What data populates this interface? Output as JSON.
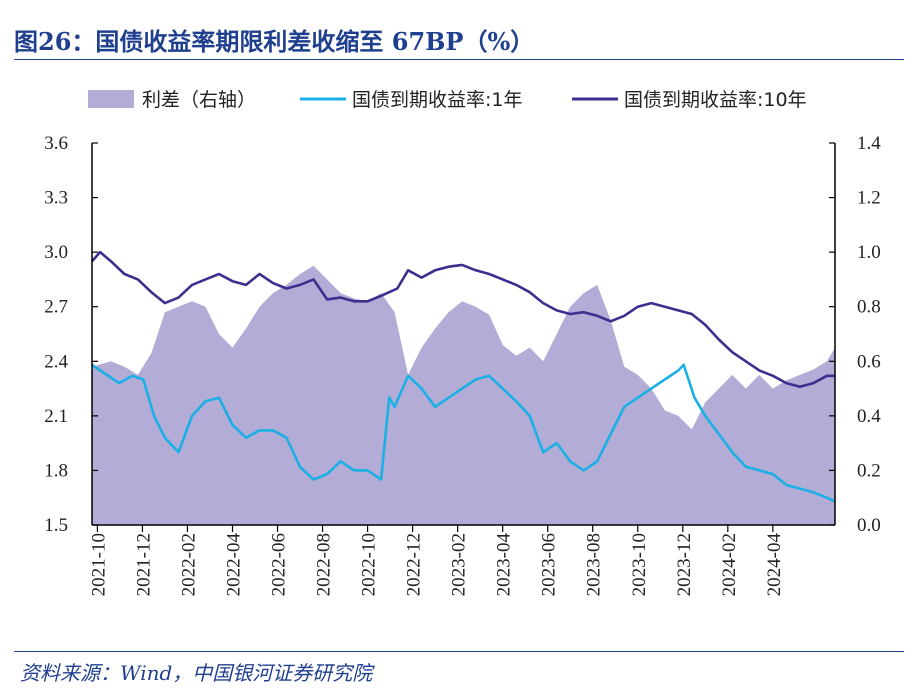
{
  "figure": {
    "title": "图26：国债收益率期限利差收缩至 67BP（%）",
    "source": "资料来源：Wind，中国银河证券研究院"
  },
  "chart_data": {
    "type": "area+line",
    "title": "图26：国债收益率期限利差收缩至 67BP（%）",
    "legend_position": "top",
    "colors": {
      "spread": "#b2acd6",
      "y1": "#1ab0e6",
      "y10": "#3b2f8f",
      "axis": "#000000"
    },
    "y_left": {
      "range": [
        1.5,
        3.6
      ],
      "ticks": [
        "3.6",
        "3.3",
        "3.0",
        "2.7",
        "2.4",
        "2.1",
        "1.8",
        "1.5"
      ]
    },
    "y_right": {
      "range": [
        0.0,
        1.4
      ],
      "ticks": [
        "1.4",
        "1.2",
        "1.0",
        "0.8",
        "0.6",
        "0.4",
        "0.2",
        "0.0"
      ]
    },
    "x_range": [
      2021.73,
      2024.48
    ],
    "x_ticks": [
      {
        "label": "2021-10",
        "t": 2021.75
      },
      {
        "label": "2021-12",
        "t": 2021.9167
      },
      {
        "label": "2022-02",
        "t": 2022.0833
      },
      {
        "label": "2022-04",
        "t": 2022.25
      },
      {
        "label": "2022-06",
        "t": 2022.4167
      },
      {
        "label": "2022-08",
        "t": 2022.5833
      },
      {
        "label": "2022-10",
        "t": 2022.75
      },
      {
        "label": "2022-12",
        "t": 2022.9167
      },
      {
        "label": "2023-02",
        "t": 2023.0833
      },
      {
        "label": "2023-04",
        "t": 2023.25
      },
      {
        "label": "2023-06",
        "t": 2023.4167
      },
      {
        "label": "2023-08",
        "t": 2023.5833
      },
      {
        "label": "2023-10",
        "t": 2023.75
      },
      {
        "label": "2023-12",
        "t": 2023.9167
      },
      {
        "label": "2024-02",
        "t": 2024.0833
      },
      {
        "label": "2024-04",
        "t": 2024.25
      }
    ],
    "series": [
      {
        "name": "利差（右轴）",
        "axis": "right",
        "kind": "area",
        "x": [
          2021.73,
          2021.8,
          2021.85,
          2021.9,
          2021.95,
          2022.0,
          2022.05,
          2022.1,
          2022.15,
          2022.2,
          2022.25,
          2022.3,
          2022.35,
          2022.4,
          2022.45,
          2022.5,
          2022.55,
          2022.6,
          2022.65,
          2022.7,
          2022.75,
          2022.8,
          2022.85,
          2022.9,
          2022.95,
          2023.0,
          2023.05,
          2023.1,
          2023.15,
          2023.2,
          2023.25,
          2023.3,
          2023.35,
          2023.4,
          2023.45,
          2023.5,
          2023.55,
          2023.6,
          2023.65,
          2023.7,
          2023.75,
          2023.8,
          2023.85,
          2023.9,
          2023.95,
          2024.0,
          2024.05,
          2024.1,
          2024.15,
          2024.2,
          2024.25,
          2024.3,
          2024.35,
          2024.4,
          2024.45,
          2024.48
        ],
        "values": [
          0.58,
          0.6,
          0.58,
          0.55,
          0.63,
          0.78,
          0.8,
          0.82,
          0.8,
          0.7,
          0.65,
          0.72,
          0.8,
          0.85,
          0.88,
          0.92,
          0.95,
          0.9,
          0.85,
          0.83,
          0.82,
          0.85,
          0.78,
          0.55,
          0.65,
          0.72,
          0.78,
          0.82,
          0.8,
          0.77,
          0.66,
          0.62,
          0.65,
          0.6,
          0.7,
          0.8,
          0.85,
          0.88,
          0.75,
          0.58,
          0.55,
          0.5,
          0.42,
          0.4,
          0.35,
          0.45,
          0.5,
          0.55,
          0.5,
          0.55,
          0.5,
          0.53,
          0.55,
          0.57,
          0.6,
          0.65
        ]
      },
      {
        "name": "国债到期收益率:1年",
        "axis": "left",
        "kind": "line",
        "x": [
          2021.73,
          2021.78,
          2021.83,
          2021.88,
          2021.92,
          2021.96,
          2022.0,
          2022.05,
          2022.1,
          2022.15,
          2022.2,
          2022.25,
          2022.3,
          2022.35,
          2022.4,
          2022.45,
          2022.5,
          2022.55,
          2022.6,
          2022.65,
          2022.7,
          2022.75,
          2022.8,
          2022.83,
          2022.85,
          2022.9,
          2022.95,
          2023.0,
          2023.05,
          2023.1,
          2023.15,
          2023.2,
          2023.25,
          2023.3,
          2023.35,
          2023.4,
          2023.45,
          2023.5,
          2023.55,
          2023.6,
          2023.65,
          2023.7,
          2023.75,
          2023.8,
          2023.85,
          2023.9,
          2023.92,
          2023.96,
          2024.0,
          2024.05,
          2024.1,
          2024.15,
          2024.2,
          2024.25,
          2024.3,
          2024.35,
          2024.4,
          2024.45,
          2024.48
        ],
        "values": [
          2.38,
          2.33,
          2.28,
          2.32,
          2.3,
          2.1,
          1.98,
          1.9,
          2.1,
          2.18,
          2.2,
          2.05,
          1.98,
          2.02,
          2.02,
          1.98,
          1.82,
          1.75,
          1.78,
          1.85,
          1.8,
          1.8,
          1.75,
          2.2,
          2.15,
          2.32,
          2.25,
          2.15,
          2.2,
          2.25,
          2.3,
          2.32,
          2.25,
          2.18,
          2.1,
          1.9,
          1.95,
          1.85,
          1.8,
          1.85,
          2.0,
          2.15,
          2.2,
          2.25,
          2.3,
          2.35,
          2.38,
          2.2,
          2.1,
          2.0,
          1.9,
          1.82,
          1.8,
          1.78,
          1.72,
          1.7,
          1.68,
          1.65,
          1.63
        ]
      },
      {
        "name": "国债到期收益率:10年",
        "axis": "left",
        "kind": "line",
        "x": [
          2021.73,
          2021.76,
          2021.8,
          2021.85,
          2021.9,
          2021.95,
          2022.0,
          2022.05,
          2022.1,
          2022.15,
          2022.2,
          2022.25,
          2022.3,
          2022.35,
          2022.4,
          2022.45,
          2022.5,
          2022.55,
          2022.6,
          2022.65,
          2022.7,
          2022.75,
          2022.8,
          2022.83,
          2022.86,
          2022.9,
          2022.95,
          2023.0,
          2023.05,
          2023.1,
          2023.15,
          2023.2,
          2023.25,
          2023.3,
          2023.35,
          2023.4,
          2023.45,
          2023.5,
          2023.55,
          2023.6,
          2023.65,
          2023.7,
          2023.75,
          2023.8,
          2023.85,
          2023.9,
          2023.95,
          2024.0,
          2024.05,
          2024.1,
          2024.15,
          2024.2,
          2024.25,
          2024.3,
          2024.35,
          2024.4,
          2024.45,
          2024.48
        ],
        "values": [
          2.95,
          3.0,
          2.95,
          2.88,
          2.85,
          2.78,
          2.72,
          2.75,
          2.82,
          2.85,
          2.88,
          2.84,
          2.82,
          2.88,
          2.83,
          2.8,
          2.82,
          2.85,
          2.74,
          2.75,
          2.73,
          2.73,
          2.76,
          2.78,
          2.8,
          2.9,
          2.86,
          2.9,
          2.92,
          2.93,
          2.9,
          2.88,
          2.85,
          2.82,
          2.78,
          2.72,
          2.68,
          2.66,
          2.67,
          2.65,
          2.62,
          2.65,
          2.7,
          2.72,
          2.7,
          2.68,
          2.66,
          2.6,
          2.52,
          2.45,
          2.4,
          2.35,
          2.32,
          2.28,
          2.26,
          2.28,
          2.32,
          2.32
        ]
      }
    ]
  }
}
